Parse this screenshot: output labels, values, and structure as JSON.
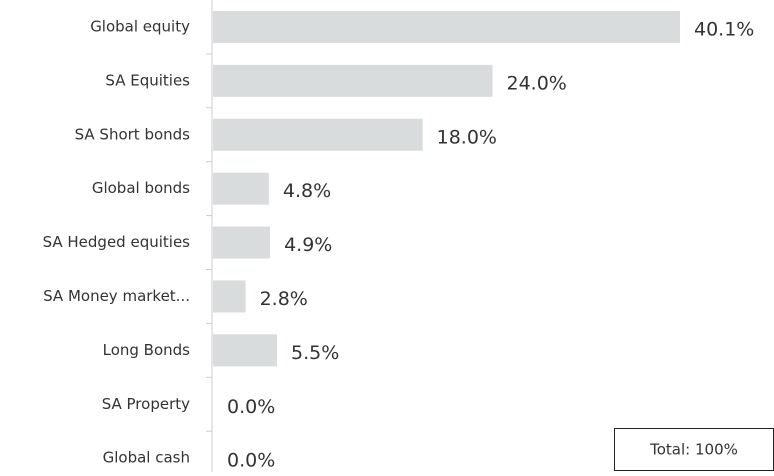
{
  "chart_data": {
    "type": "bar",
    "orientation": "horizontal",
    "categories": [
      "Global equity",
      "SA Equities",
      "SA Short bonds",
      "Global bonds",
      "SA Hedged equities",
      "SA Money market...",
      "Long Bonds",
      "SA Property",
      "Global cash"
    ],
    "values": [
      40.1,
      24.0,
      18.0,
      4.8,
      4.9,
      2.8,
      5.5,
      0.0,
      0.0
    ],
    "value_labels": [
      "40.1%",
      "24.0%",
      "18.0%",
      "4.8%",
      "4.9%",
      "2.8%",
      "5.5%",
      "0.0%",
      "0.0%"
    ],
    "color": "#d8dcdc",
    "annotation": "Total: 100%"
  }
}
